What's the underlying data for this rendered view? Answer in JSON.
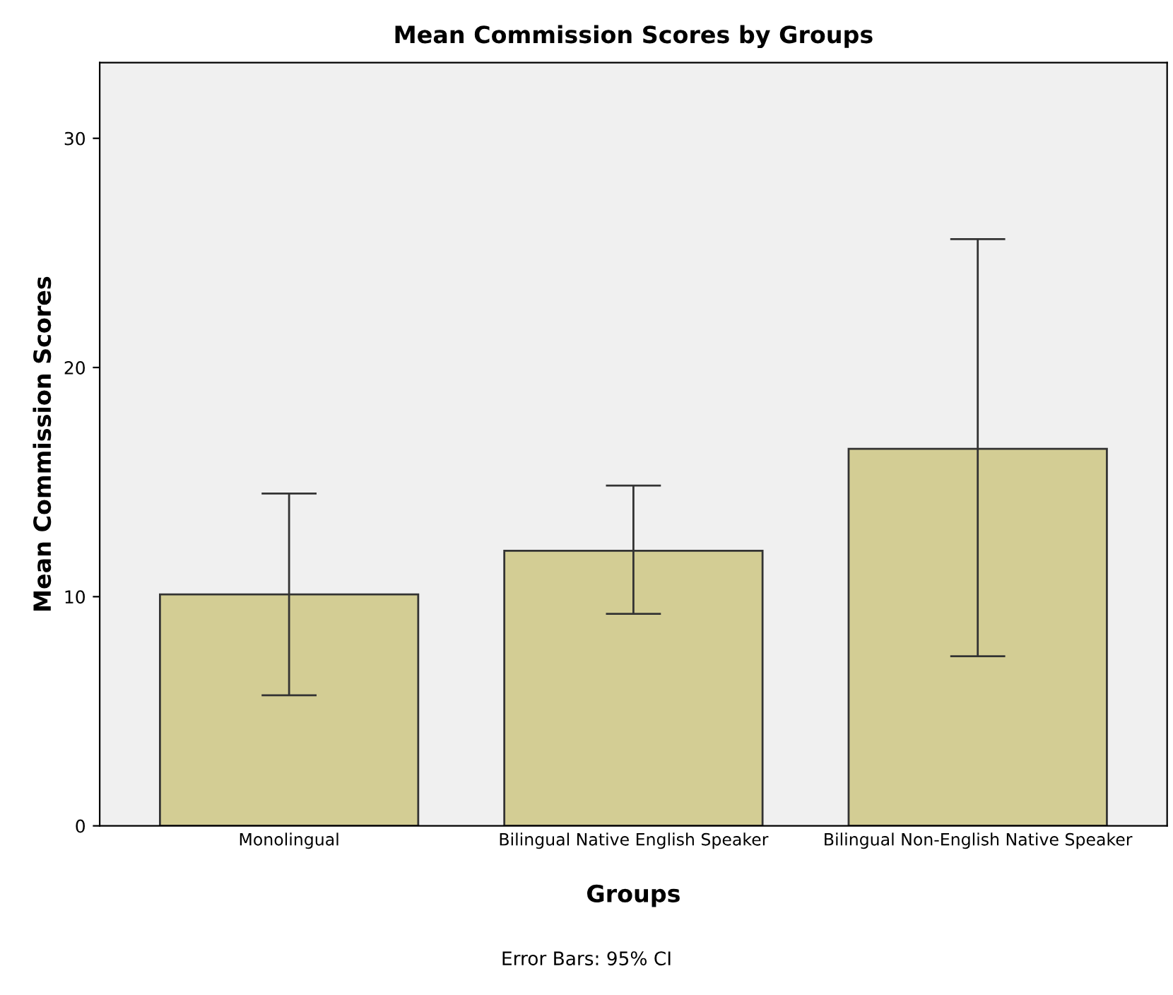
{
  "chart_data": {
    "type": "bar",
    "title": "Mean Commission Scores by Groups",
    "xlabel": "Groups",
    "ylabel": "Mean Commission Scores",
    "categories": [
      "Monolingual",
      "Bilingual Native English Speaker",
      "Bilingual Non-English Native Speaker"
    ],
    "values": [
      10.1,
      12.0,
      16.45
    ],
    "errors": [
      [
        5.7,
        14.5
      ],
      [
        9.25,
        14.85
      ],
      [
        7.4,
        25.6
      ]
    ],
    "color": "#d3cd94",
    "ylim": [
      0,
      33.3
    ],
    "yticks": [
      0,
      10,
      20,
      30
    ],
    "grid": false,
    "annotations": [
      "Error Bars: 95% CI"
    ]
  }
}
